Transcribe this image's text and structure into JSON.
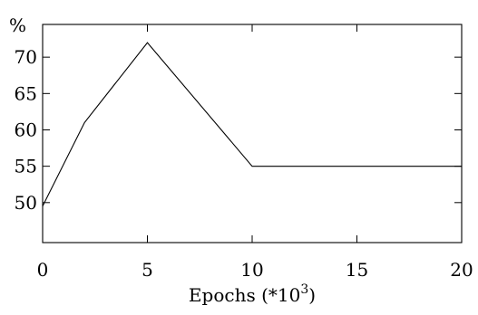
{
  "chart_data": {
    "type": "line",
    "title": "",
    "xlabel": "Epochs (*10",
    "xlabel_superscript": "3",
    "xlabel_suffix": ")",
    "ylabel": "%",
    "xlim": [
      0,
      20
    ],
    "ylim": [
      44.5,
      74.5
    ],
    "x_ticks": [
      0,
      5,
      10,
      15,
      20
    ],
    "y_ticks": [
      50,
      55,
      60,
      65,
      70
    ],
    "grid": false,
    "series": [
      {
        "x": [
          0,
          2,
          5,
          10,
          20
        ],
        "values": [
          49.5,
          61,
          72,
          55,
          55
        ]
      }
    ]
  }
}
